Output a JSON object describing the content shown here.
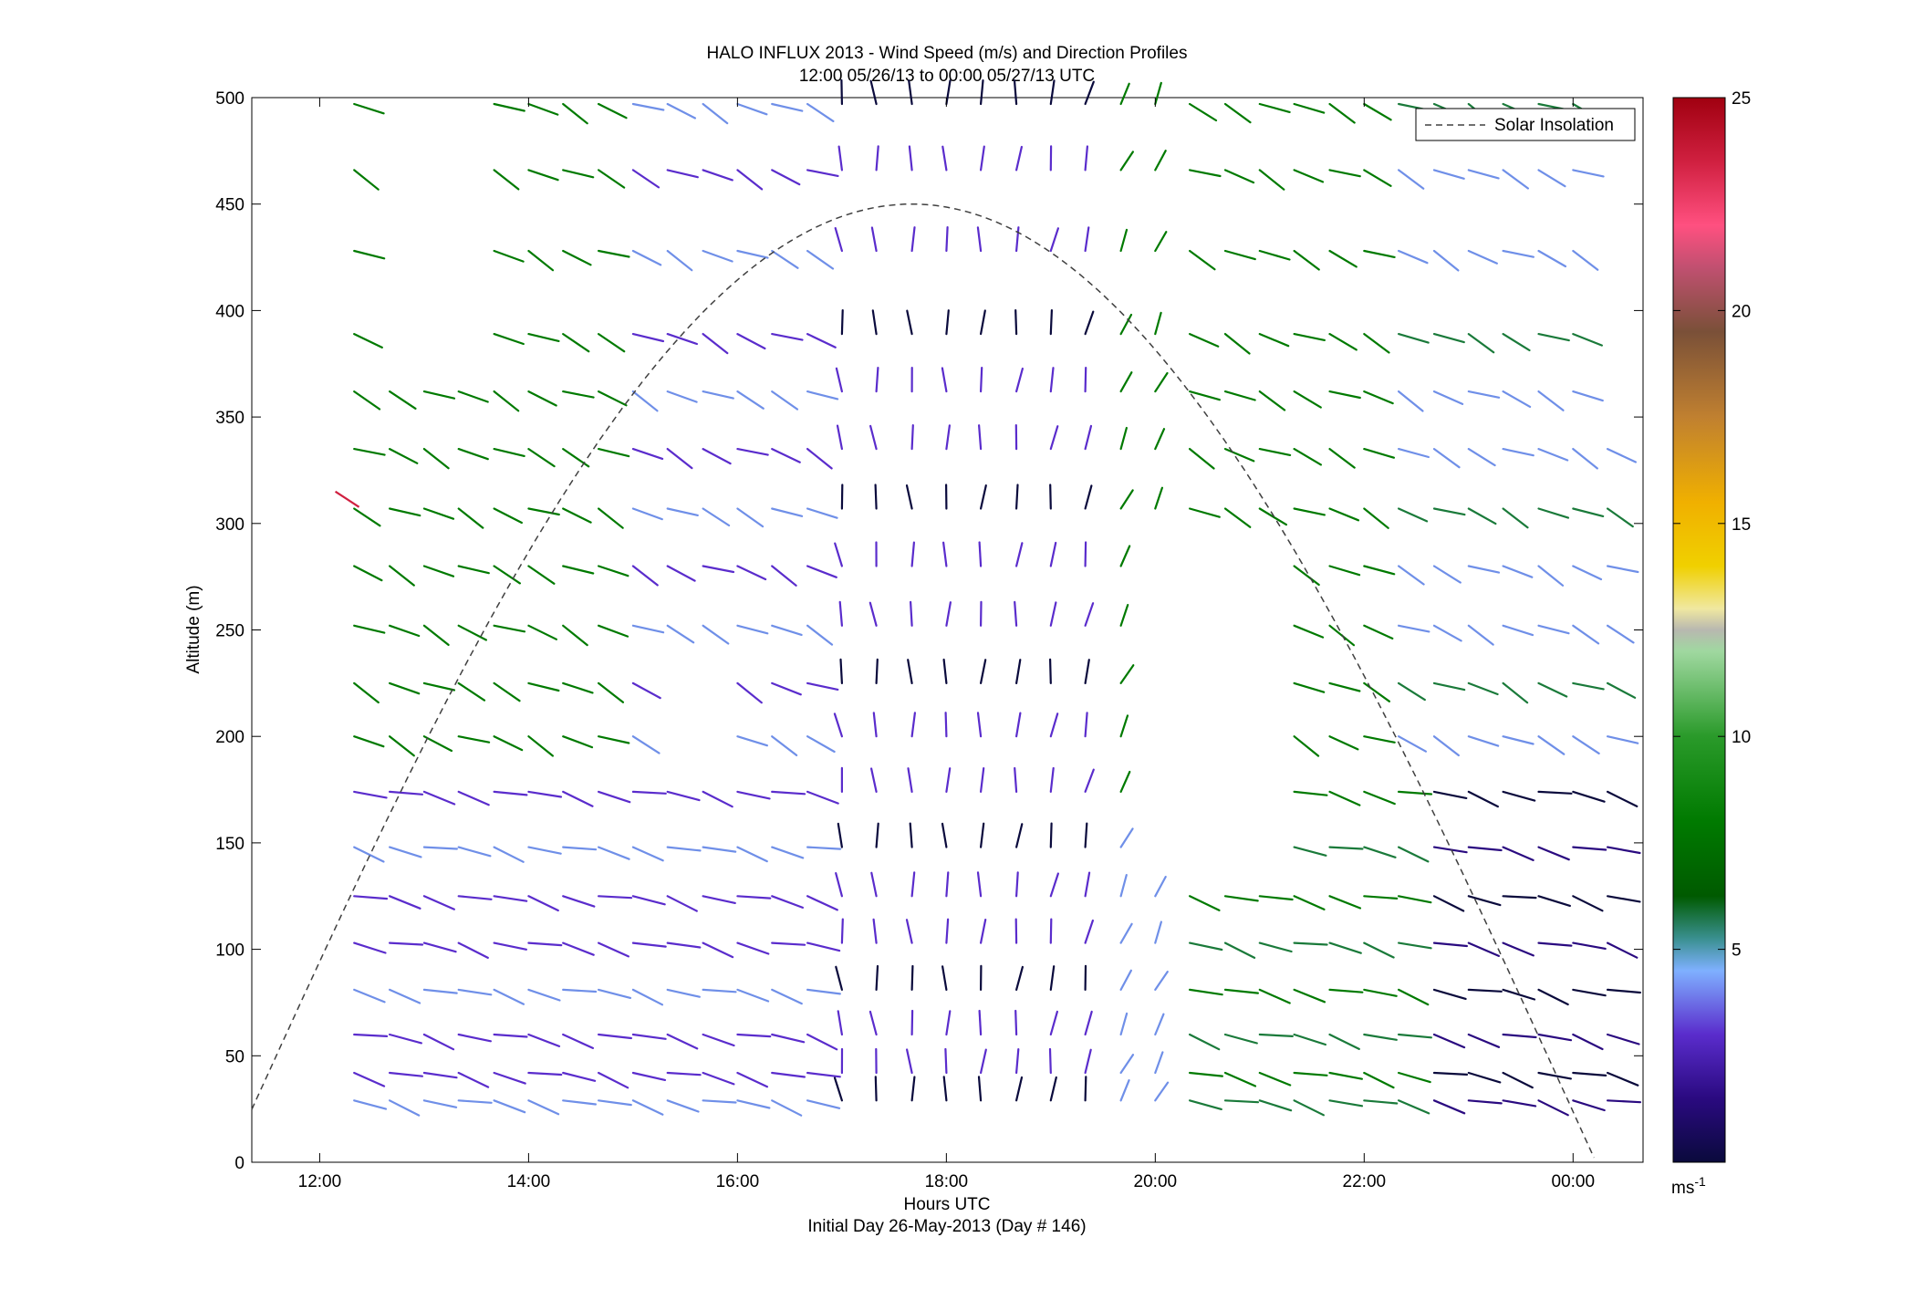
{
  "chart_data": {
    "type": "quiver",
    "title": "HALO INFLUX 2013 - Wind Speed (m/s) and Direction Profiles",
    "subtitle": "12:00 05/26/13 to 00:00 05/27/13  UTC",
    "xlabel": "Hours UTC",
    "xlabel2": "Initial Day 26-May-2013 (Day # 146)",
    "ylabel": "Altitude (m)",
    "xlim_hours": [
      11.35,
      24.67
    ],
    "ylim": [
      0,
      500
    ],
    "xtick_labels": [
      "12:00",
      "14:00",
      "16:00",
      "18:00",
      "20:00",
      "22:00",
      "00:00"
    ],
    "xtick_hours": [
      12,
      14,
      16,
      18,
      20,
      22,
      24
    ],
    "yticks": [
      0,
      50,
      100,
      150,
      200,
      250,
      300,
      350,
      400,
      450,
      500
    ],
    "colorbar": {
      "range": [
        0,
        25
      ],
      "ticks": [
        5,
        10,
        15,
        20,
        25
      ],
      "unit": "ms",
      "unit_exp": "-1",
      "colors": [
        "#0a0a3c",
        "#2a0a80",
        "#5a2ccc",
        "#6f8fe8",
        "#7fb0ff",
        "#3a9090",
        "#1a7a3a",
        "#007a00",
        "#2a9a2a",
        "#80c880",
        "#b8e0b0",
        "#c0c0b0",
        "#f0e060",
        "#f0c800",
        "#e8a018",
        "#b07830",
        "#7a5038",
        "#a05060",
        "#ff5080",
        "#d02040",
        "#a00010"
      ]
    },
    "legend": {
      "entries": [
        "Solar Insolation"
      ],
      "placement": "top-right"
    },
    "solar_curve": {
      "peak_hour": 17.67,
      "peak_altitude_m": 450,
      "style": "dashed"
    },
    "series": [
      {
        "name": "Solar Insolation",
        "description_of_vectors": "wind vectors on a grid of hours × altitudes"
      }
    ],
    "vector_hours": [
      12.33,
      12.67,
      13.0,
      13.33,
      13.67,
      14.0,
      14.33,
      14.67,
      15.0,
      15.33,
      15.67,
      16.0,
      16.33,
      16.67,
      17.0,
      17.33,
      17.67,
      18.0,
      18.33,
      18.67,
      19.0,
      19.33,
      19.67,
      20.0,
      20.33,
      20.67,
      21.0,
      21.33,
      21.67,
      22.0,
      22.33,
      22.67,
      23.0,
      23.33,
      23.67,
      24.0,
      24.33
    ],
    "vector_altitudes": [
      29,
      42,
      60,
      81,
      103,
      125,
      148,
      174,
      200,
      225,
      252,
      280,
      307,
      335,
      362,
      389,
      428,
      466,
      497
    ]
  }
}
